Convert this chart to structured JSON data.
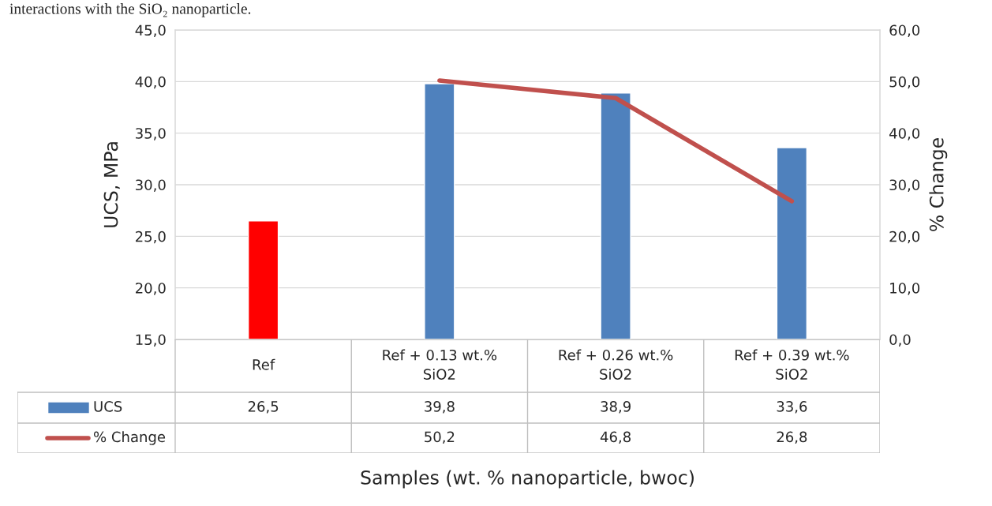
{
  "chart_data": {
    "type": "bar",
    "annotations": [
      "interactions with the SiO₂ nanoparticle."
    ],
    "xlabel": "Samples (wt. % nanoparticle, bwoc)",
    "ylabel": "UCS, MPa",
    "y2label": "% Change",
    "categories": [
      "Ref",
      "Ref + 0.13 wt.% SiO2",
      "Ref + 0.26 wt.% SiO2",
      "Ref + 0.39 wt.% SiO2"
    ],
    "series": [
      {
        "name": "UCS",
        "color": "#4f81bd",
        "colors": [
          "#ff0000",
          "#4f81bd",
          "#4f81bd",
          "#4f81bd"
        ],
        "values": [
          26.5,
          39.8,
          38.9,
          33.6
        ],
        "value_labels": [
          "26,5",
          "39,8",
          "38,9",
          "33,6"
        ]
      },
      {
        "name": "% Change",
        "type": "line",
        "axis": "y2",
        "color": "#c0504d",
        "values": [
          null,
          50.2,
          46.8,
          26.8
        ],
        "value_labels": [
          null,
          "50,2",
          "46,8",
          "26,8"
        ]
      }
    ],
    "ylim": [
      15,
      45
    ],
    "yticks": [
      {
        "value": 15,
        "label": "15,0"
      },
      {
        "value": 20,
        "label": "20,0"
      },
      {
        "value": 25,
        "label": "25,0"
      },
      {
        "value": 30,
        "label": "30,0"
      },
      {
        "value": 35,
        "label": "35,0"
      },
      {
        "value": 40,
        "label": "40,0"
      },
      {
        "value": 45,
        "label": "45,0"
      }
    ],
    "y2lim": [
      0,
      60
    ],
    "y2ticks": [
      {
        "value": 0,
        "label": "0,0"
      },
      {
        "value": 10,
        "label": "10,0"
      },
      {
        "value": 20,
        "label": "20,0"
      },
      {
        "value": 30,
        "label": "30,0"
      },
      {
        "value": 40,
        "label": "40,0"
      },
      {
        "value": 50,
        "label": "50,0"
      },
      {
        "value": 60,
        "label": "60,0"
      }
    ],
    "grid": "y",
    "legend": "bottom",
    "data_labels": true,
    "line_style": "solid",
    "marker": "none"
  }
}
